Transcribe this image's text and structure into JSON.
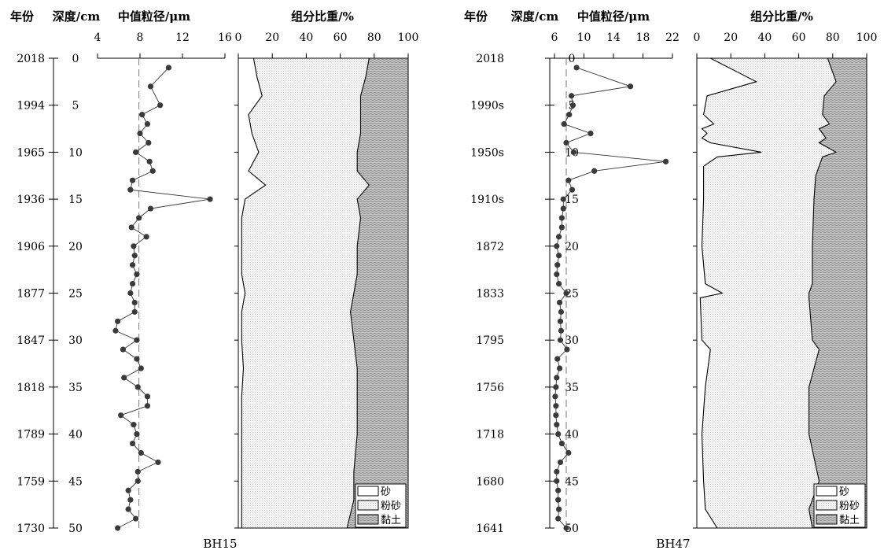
{
  "chart_data": [
    {
      "type": "line",
      "id": "BH15",
      "caption": "BH15",
      "headers": {
        "year": "年份",
        "depth": "深度/cm",
        "grain": "中值粒径/μm",
        "comp": "组分比重/%"
      },
      "depth_ticks": [
        0,
        5,
        10,
        15,
        20,
        25,
        30,
        35,
        40,
        45,
        50
      ],
      "year_labels": [
        "2018",
        "1994",
        "1965",
        "1936",
        "1906",
        "1877",
        "1847",
        "1818",
        "1789",
        "1759",
        "1730"
      ],
      "grain_axis": {
        "min": 4,
        "max": 16,
        "ticks": [
          4,
          8,
          12,
          16
        ],
        "reference": 7.9
      },
      "comp_axis": {
        "min": 0,
        "max": 100,
        "ticks": [
          0,
          20,
          40,
          60,
          80,
          100
        ]
      },
      "grain_series": {
        "depth": [
          1,
          3,
          5,
          6,
          7,
          8,
          9,
          10,
          11,
          12,
          13,
          14,
          15,
          16,
          17,
          18,
          19,
          20,
          21,
          22,
          23,
          24,
          25,
          26,
          27,
          28,
          29,
          30,
          31,
          32,
          33,
          34,
          35,
          36,
          37,
          38,
          39,
          40,
          41,
          42,
          43,
          44,
          45,
          46,
          47,
          48,
          49,
          50
        ],
        "value": [
          10.7,
          9.0,
          9.9,
          8.2,
          8.7,
          8.0,
          8.8,
          7.6,
          8.9,
          9.2,
          7.3,
          7.1,
          14.6,
          9.0,
          7.9,
          7.2,
          8.6,
          7.4,
          7.5,
          7.3,
          7.7,
          7.3,
          7.1,
          7.5,
          7.5,
          5.9,
          5.7,
          7.7,
          6.4,
          7.7,
          8.1,
          6.5,
          7.8,
          8.7,
          8.7,
          6.2,
          7.4,
          7.7,
          7.3,
          8.1,
          9.7,
          7.8,
          7.8,
          6.9,
          7.1,
          6.9,
          7.6,
          5.9
        ]
      },
      "composition": {
        "depth": [
          0,
          2,
          4,
          6,
          8,
          10,
          12,
          13.5,
          15,
          17,
          20,
          23,
          25,
          27,
          30,
          33,
          36,
          40,
          44,
          47,
          50
        ],
        "sand": [
          9,
          11,
          14,
          6,
          8,
          12,
          6,
          16,
          4,
          2,
          2,
          2,
          4,
          2,
          2,
          3,
          2,
          2,
          2,
          2,
          2
        ],
        "silt_clay_boundary": [
          77,
          75,
          72,
          72,
          72,
          70,
          70,
          77,
          70,
          72,
          70,
          70,
          68,
          66,
          68,
          70,
          70,
          70,
          68,
          68,
          64
        ]
      },
      "legend": [
        "砂",
        "粉砂",
        "黏土"
      ]
    },
    {
      "type": "line",
      "id": "BH47",
      "caption": "BH47",
      "headers": {
        "year": "年份",
        "depth": "深度/cm",
        "grain": "中值粒径/μm",
        "comp": "组分比重/%"
      },
      "depth_ticks": [
        0,
        5,
        10,
        15,
        20,
        25,
        30,
        35,
        40,
        45,
        50
      ],
      "year_labels": [
        "2018",
        "1990s",
        "1950s",
        "1910s",
        "1872",
        "1833",
        "1795",
        "1756",
        "1718",
        "1680",
        "1641"
      ],
      "grain_axis": {
        "min": 6,
        "max": 22,
        "ticks": [
          6,
          10,
          14,
          18,
          22
        ],
        "reference": 7.6
      },
      "comp_axis": {
        "min": 0,
        "max": 100,
        "ticks": [
          0,
          20,
          40,
          60,
          80,
          100
        ]
      },
      "grain_series": {
        "depth": [
          1,
          3,
          4,
          5,
          6,
          7,
          8,
          9,
          10,
          11,
          12,
          13,
          14,
          15,
          16,
          17,
          18,
          19,
          20,
          21,
          22,
          23,
          24,
          25,
          26,
          27,
          28,
          29,
          30,
          31,
          32,
          33,
          34,
          35,
          36,
          37,
          38,
          39,
          40,
          41,
          42,
          43,
          44,
          45,
          46,
          47,
          48,
          49,
          50
        ],
        "value": [
          9.0,
          16.3,
          8.3,
          8.5,
          8.0,
          7.3,
          10.9,
          7.6,
          8.6,
          21.1,
          11.4,
          7.9,
          8.4,
          7.2,
          7.2,
          7.0,
          7.0,
          6.6,
          6.3,
          6.6,
          6.4,
          6.3,
          6.6,
          7.6,
          6.7,
          6.9,
          6.8,
          6.9,
          6.8,
          7.7,
          6.4,
          6.7,
          6.3,
          6.2,
          6.1,
          6.2,
          6.2,
          6.3,
          6.5,
          7.0,
          7.9,
          6.8,
          6.3,
          6.3,
          6.5,
          6.5,
          6.6,
          6.5,
          7.6
        ]
      },
      "composition": {
        "depth": [
          0,
          2.5,
          4,
          6,
          7,
          7.5,
          8,
          8.5,
          9,
          10,
          10.5,
          11.5,
          12.5,
          15,
          20,
          24,
          25,
          25.5,
          30,
          31,
          35,
          40,
          45,
          48,
          50
        ],
        "sand": [
          8,
          35,
          6,
          4,
          10,
          3,
          6,
          3,
          8,
          38,
          12,
          4,
          4,
          4,
          3,
          5,
          15,
          2,
          3,
          8,
          5,
          3,
          4,
          5,
          12
        ],
        "silt_clay_boundary": [
          77,
          82,
          75,
          74,
          78,
          72,
          74,
          76,
          72,
          82,
          74,
          72,
          70,
          69,
          68,
          68,
          66,
          66,
          68,
          72,
          66,
          66,
          72,
          66,
          68
        ]
      },
      "legend": [
        "砂",
        "粉砂",
        "黏土"
      ]
    }
  ]
}
